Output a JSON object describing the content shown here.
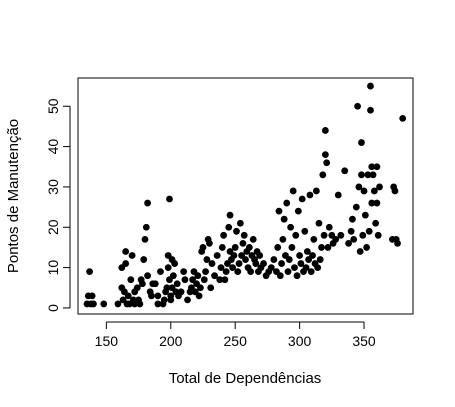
{
  "chart_data": {
    "type": "scatter",
    "title": "",
    "xlabel": "Total de Dependências",
    "ylabel": "Pontos de Manutenção",
    "xlim": [
      128,
      388
    ],
    "ylim": [
      -1.5,
      57
    ],
    "xticks": [
      150,
      200,
      250,
      300,
      350
    ],
    "yticks": [
      0,
      10,
      20,
      30,
      40,
      50
    ],
    "grid": false,
    "legend": "none",
    "marker_color": "#000000",
    "points": [
      [
        135,
        1
      ],
      [
        136,
        3
      ],
      [
        137,
        9
      ],
      [
        138,
        1
      ],
      [
        139,
        3
      ],
      [
        140,
        1
      ],
      [
        148,
        1
      ],
      [
        159,
        1
      ],
      [
        162,
        5
      ],
      [
        162,
        10
      ],
      [
        163,
        2
      ],
      [
        164,
        4
      ],
      [
        165,
        14
      ],
      [
        165,
        11
      ],
      [
        166,
        1
      ],
      [
        167,
        3
      ],
      [
        168,
        1
      ],
      [
        169,
        7
      ],
      [
        170,
        13
      ],
      [
        171,
        2
      ],
      [
        172,
        4
      ],
      [
        172,
        1
      ],
      [
        174,
        5
      ],
      [
        175,
        2
      ],
      [
        176,
        1
      ],
      [
        177,
        7
      ],
      [
        178,
        6
      ],
      [
        179,
        12
      ],
      [
        180,
        17
      ],
      [
        181,
        20
      ],
      [
        182,
        26
      ],
      [
        182,
        8
      ],
      [
        184,
        4
      ],
      [
        185,
        3
      ],
      [
        186,
        6
      ],
      [
        188,
        6
      ],
      [
        190,
        1
      ],
      [
        190,
        3
      ],
      [
        192,
        9
      ],
      [
        194,
        1
      ],
      [
        195,
        2
      ],
      [
        196,
        4
      ],
      [
        197,
        5
      ],
      [
        198,
        10
      ],
      [
        198,
        13
      ],
      [
        199,
        27
      ],
      [
        199,
        7
      ],
      [
        200,
        3
      ],
      [
        200,
        2
      ],
      [
        201,
        5
      ],
      [
        201,
        12
      ],
      [
        202,
        8
      ],
      [
        203,
        11
      ],
      [
        204,
        4
      ],
      [
        205,
        6
      ],
      [
        206,
        3
      ],
      [
        208,
        4
      ],
      [
        210,
        9
      ],
      [
        211,
        7
      ],
      [
        213,
        2
      ],
      [
        215,
        4
      ],
      [
        216,
        5
      ],
      [
        217,
        7
      ],
      [
        218,
        9
      ],
      [
        219,
        4
      ],
      [
        220,
        6
      ],
      [
        221,
        8
      ],
      [
        222,
        3
      ],
      [
        223,
        5
      ],
      [
        224,
        14
      ],
      [
        225,
        15
      ],
      [
        226,
        7
      ],
      [
        227,
        9
      ],
      [
        228,
        12
      ],
      [
        229,
        17
      ],
      [
        230,
        16
      ],
      [
        231,
        5
      ],
      [
        232,
        11
      ],
      [
        234,
        8
      ],
      [
        236,
        13
      ],
      [
        238,
        7
      ],
      [
        239,
        10
      ],
      [
        240,
        15
      ],
      [
        241,
        18
      ],
      [
        242,
        7
      ],
      [
        243,
        9
      ],
      [
        244,
        11
      ],
      [
        245,
        20
      ],
      [
        246,
        23
      ],
      [
        246,
        14
      ],
      [
        247,
        12
      ],
      [
        248,
        10
      ],
      [
        249,
        13
      ],
      [
        250,
        15
      ],
      [
        251,
        19
      ],
      [
        252,
        9
      ],
      [
        253,
        11
      ],
      [
        254,
        21
      ],
      [
        255,
        13
      ],
      [
        256,
        16
      ],
      [
        257,
        18
      ],
      [
        258,
        12
      ],
      [
        259,
        14
      ],
      [
        260,
        10
      ],
      [
        261,
        15
      ],
      [
        262,
        9
      ],
      [
        263,
        13
      ],
      [
        264,
        17
      ],
      [
        265,
        12
      ],
      [
        266,
        11
      ],
      [
        267,
        14
      ],
      [
        268,
        9
      ],
      [
        269,
        13
      ],
      [
        270,
        10
      ],
      [
        272,
        11
      ],
      [
        274,
        8
      ],
      [
        276,
        9
      ],
      [
        278,
        10
      ],
      [
        280,
        12
      ],
      [
        282,
        9
      ],
      [
        283,
        15
      ],
      [
        284,
        24
      ],
      [
        285,
        8
      ],
      [
        286,
        11
      ],
      [
        287,
        17
      ],
      [
        288,
        22
      ],
      [
        289,
        13
      ],
      [
        290,
        26
      ],
      [
        291,
        9
      ],
      [
        292,
        12
      ],
      [
        293,
        20
      ],
      [
        294,
        15
      ],
      [
        295,
        29
      ],
      [
        296,
        10
      ],
      [
        297,
        18
      ],
      [
        298,
        8
      ],
      [
        299,
        24
      ],
      [
        300,
        13
      ],
      [
        301,
        11
      ],
      [
        302,
        27
      ],
      [
        303,
        9
      ],
      [
        304,
        19
      ],
      [
        305,
        10
      ],
      [
        306,
        14
      ],
      [
        307,
        12
      ],
      [
        308,
        28
      ],
      [
        309,
        9
      ],
      [
        310,
        13
      ],
      [
        311,
        17
      ],
      [
        312,
        11
      ],
      [
        313,
        29
      ],
      [
        314,
        10
      ],
      [
        315,
        21
      ],
      [
        316,
        12
      ],
      [
        317,
        15
      ],
      [
        318,
        33
      ],
      [
        319,
        18
      ],
      [
        320,
        44
      ],
      [
        320,
        38
      ],
      [
        321,
        36
      ],
      [
        322,
        15
      ],
      [
        323,
        20
      ],
      [
        325,
        18
      ],
      [
        326,
        16
      ],
      [
        328,
        17
      ],
      [
        330,
        28
      ],
      [
        332,
        18
      ],
      [
        335,
        34
      ],
      [
        338,
        16
      ],
      [
        340,
        19
      ],
      [
        341,
        22
      ],
      [
        342,
        17
      ],
      [
        344,
        25
      ],
      [
        345,
        50
      ],
      [
        346,
        30
      ],
      [
        347,
        14
      ],
      [
        348,
        33
      ],
      [
        348,
        41
      ],
      [
        349,
        18
      ],
      [
        350,
        29
      ],
      [
        351,
        23
      ],
      [
        352,
        15
      ],
      [
        353,
        33
      ],
      [
        354,
        19
      ],
      [
        355,
        55
      ],
      [
        355,
        49
      ],
      [
        356,
        35
      ],
      [
        356,
        26
      ],
      [
        357,
        33
      ],
      [
        358,
        29
      ],
      [
        359,
        21
      ],
      [
        360,
        35
      ],
      [
        360,
        26
      ],
      [
        361,
        18
      ],
      [
        362,
        30
      ],
      [
        372,
        17
      ],
      [
        373,
        30
      ],
      [
        374,
        29
      ],
      [
        375,
        17
      ],
      [
        376,
        16
      ],
      [
        380,
        47
      ]
    ]
  }
}
